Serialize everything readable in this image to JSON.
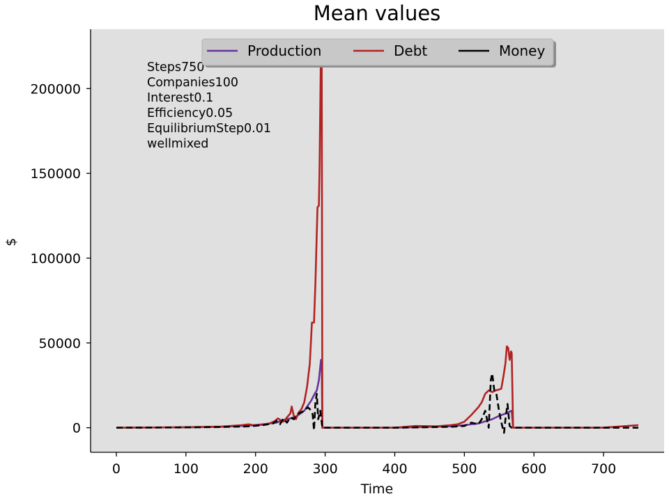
{
  "chart_data": {
    "type": "line",
    "title": "Mean values",
    "xlabel": "Time",
    "ylabel": "$",
    "xlim": [
      -37,
      787
    ],
    "ylim": [
      -14500,
      235000
    ],
    "xticks": [
      0,
      100,
      200,
      300,
      400,
      500,
      600,
      700
    ],
    "yticks": [
      0,
      50000,
      100000,
      150000,
      200000
    ],
    "grid": false,
    "background": "#e0e0e0",
    "legend": {
      "placement": "top-center",
      "columns": 3
    },
    "annotations": [
      "Steps750",
      "Companies100",
      "Interest0.1",
      "Efficiency0.05",
      "EquilibriumStep0.01",
      "wellmixed"
    ],
    "series": [
      {
        "name": "Production",
        "color": "#663399",
        "style": "solid",
        "x": [
          0,
          100,
          150,
          190,
          210,
          230,
          240,
          250,
          260,
          270,
          275,
          280,
          285,
          288,
          291,
          294,
          295,
          296,
          300,
          400,
          480,
          500,
          520,
          540,
          550,
          560,
          565,
          568,
          570,
          600,
          700,
          750
        ],
        "y": [
          0,
          200,
          500,
          1200,
          2000,
          3000,
          4500,
          5500,
          7000,
          10000,
          13000,
          16000,
          20000,
          22000,
          28000,
          40000,
          40000,
          0,
          0,
          0,
          800,
          1500,
          2500,
          5000,
          7000,
          8500,
          9500,
          10000,
          0,
          0,
          0,
          1500
        ]
      },
      {
        "name": "Debt",
        "color": "#b22222",
        "style": "solid",
        "x": [
          0,
          100,
          150,
          180,
          190,
          200,
          210,
          220,
          228,
          232,
          236,
          240,
          245,
          250,
          252,
          255,
          258,
          262,
          266,
          270,
          274,
          278,
          281,
          284,
          286,
          289,
          291,
          292,
          294,
          295,
          296,
          300,
          400,
          430,
          460,
          480,
          490,
          500,
          510,
          520,
          525,
          530,
          535,
          540,
          545,
          550,
          553,
          556,
          559,
          561,
          563,
          565,
          567,
          568,
          570,
          600,
          700,
          750
        ],
        "y": [
          0,
          300,
          700,
          1500,
          2000,
          1200,
          1800,
          2500,
          4000,
          5500,
          4500,
          3500,
          6000,
          8500,
          12500,
          7000,
          5000,
          9000,
          11000,
          15000,
          24000,
          38000,
          62000,
          62000,
          85000,
          130000,
          131000,
          155000,
          225000,
          226000,
          0,
          0,
          0,
          1000,
          800,
          1500,
          2000,
          3500,
          7500,
          12000,
          15000,
          20000,
          22000,
          21000,
          22000,
          22500,
          23000,
          30000,
          38000,
          48000,
          47000,
          40000,
          45000,
          44000,
          0,
          0,
          0,
          1500
        ]
      },
      {
        "name": "Money",
        "color": "#000000",
        "style": "dashed",
        "x": [
          0,
          100,
          150,
          190,
          210,
          225,
          230,
          235,
          240,
          245,
          250,
          255,
          260,
          265,
          270,
          275,
          278,
          282,
          284,
          286,
          288,
          290,
          293,
          296,
          300,
          400,
          480,
          500,
          510,
          520,
          525,
          530,
          535,
          538,
          540,
          543,
          546,
          549,
          552,
          555,
          557,
          559,
          562,
          565,
          568,
          570,
          600,
          700,
          750
        ],
        "y": [
          0,
          200,
          400,
          800,
          1500,
          2500,
          4000,
          2000,
          5500,
          3000,
          6000,
          5000,
          8000,
          9000,
          10000,
          12000,
          11000,
          8000,
          -1500,
          15000,
          20000,
          5000,
          10000,
          0,
          0,
          0,
          500,
          1000,
          3000,
          2000,
          5000,
          10000,
          0,
          28000,
          32000,
          22000,
          20000,
          12000,
          5000,
          0,
          -3000,
          5000,
          14000,
          1000,
          0,
          0,
          0,
          0,
          0
        ]
      }
    ]
  }
}
